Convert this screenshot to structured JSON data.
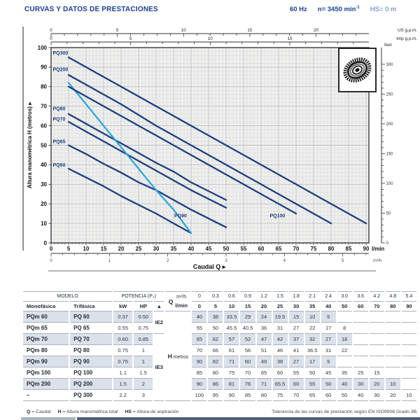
{
  "header": {
    "title": "CURVAS Y DATOS DE PRESTACIONES",
    "frequency": "60 Hz",
    "speed": "n= 3450 min",
    "speed_exp": "-1",
    "suction": "HS= 0 m"
  },
  "colors": {
    "accent_navy": "#1a3e94",
    "curve_dark": "#1e3f7e",
    "curve_light": "#2ea7dc",
    "row_shade": "#dbe1e9",
    "plot_bg": "#efefed"
  },
  "chart_data": {
    "type": "line",
    "xlabel": "Caudal Q",
    "ylabel": "Altura manométrica H (metros)",
    "x_units_primary": "l/min",
    "x_units_secondary": "m³/h",
    "right_axis_label": "feet",
    "top_axis_1_label": "US g.p.m.",
    "top_axis_2_label": "Imp g.p.m.",
    "xlim": [
      0,
      90
    ],
    "ylim": [
      0,
      100
    ],
    "x_tick_step": 5,
    "y_tick_step": 10,
    "grid": "fine graph paper, minor 1 l/min x 2 m",
    "us_gpm_labels": [
      0,
      5,
      10,
      15,
      20
    ],
    "imp_gpm_labels": [
      0,
      5,
      10,
      15
    ],
    "feet_labels": [
      0,
      50,
      100,
      150,
      200,
      250,
      300
    ],
    "m3h_labels": [
      0,
      1,
      2,
      3,
      4,
      5
    ],
    "x": [
      0,
      5,
      10,
      15,
      20,
      25,
      30,
      35,
      40,
      50,
      60,
      70,
      80,
      90
    ],
    "series": [
      {
        "name": "PQ60",
        "color": "#1e3f7e",
        "values": [
          40,
          38,
          33.5,
          29,
          24,
          19.5,
          15,
          10,
          5
        ]
      },
      {
        "name": "PQ65",
        "color": "#1e3f7e",
        "values": [
          55,
          50,
          45.5,
          40.5,
          36,
          31,
          27,
          22,
          17,
          8
        ]
      },
      {
        "name": "PQ70",
        "color": "#1e3f7e",
        "values": [
          65,
          62,
          57,
          52,
          47,
          42,
          37,
          32,
          27,
          18
        ]
      },
      {
        "name": "PQ80",
        "color": "#1e3f7e",
        "values": [
          70,
          66,
          61,
          56,
          51,
          46,
          41,
          36.5,
          31,
          22
        ]
      },
      {
        "name": "PQ90",
        "color": "#2ea7dc",
        "values": [
          90,
          82,
          71,
          60,
          49,
          38,
          27,
          17,
          5
        ]
      },
      {
        "name": "PQ100",
        "color": "#1e3f7e",
        "values": [
          85,
          80,
          75,
          70,
          65,
          60,
          55,
          50,
          45,
          35,
          25,
          15
        ]
      },
      {
        "name": "PQ200",
        "color": "#1e3f7e",
        "values": [
          90,
          86,
          81,
          76,
          71,
          65.5,
          60,
          55,
          50,
          40,
          30,
          20,
          10
        ]
      },
      {
        "name": "PQ300",
        "color": "#1e3f7e",
        "values": [
          100,
          95,
          90,
          85,
          80,
          75,
          70,
          65,
          60,
          50,
          40,
          30,
          20,
          10
        ]
      }
    ],
    "curve_labels": [
      {
        "text": "PQ300",
        "q": 0.5,
        "h": 96.5
      },
      {
        "text": "PQ200",
        "q": 0.5,
        "h": 88
      },
      {
        "text": "PQ80",
        "q": 0.5,
        "h": 68
      },
      {
        "text": "PQ70",
        "q": 0.5,
        "h": 62.5
      },
      {
        "text": "PQ65",
        "q": 0.5,
        "h": 51
      },
      {
        "text": "PQ60",
        "q": 0.5,
        "h": 39
      },
      {
        "text": "PQ90",
        "q": 35.2,
        "h": 13
      },
      {
        "text": "PQ100",
        "q": 62.5,
        "h": 13
      }
    ]
  },
  "table": {
    "header": {
      "modelo": "MODELO",
      "monofasica": "Monofásica",
      "trifasica": "Trifásica",
      "potencia": "POTENCIA (P₂)",
      "kw": "kW",
      "hp": "HP",
      "tri": "▲",
      "q": "Q",
      "m3h": "m³/h",
      "lmin": "l/min",
      "h": "H",
      "metros": "metros"
    },
    "m3h_values": [
      "0",
      "0.3",
      "0.6",
      "0.9",
      "1.2",
      "1.5",
      "1.8",
      "2.1",
      "2.4",
      "3.0",
      "3.6",
      "4.2",
      "4.8",
      "5.4"
    ],
    "lmin_values": [
      "0",
      "5",
      "10",
      "15",
      "20",
      "25",
      "30",
      "35",
      "40",
      "50",
      "60",
      "70",
      "80",
      "90"
    ],
    "efficiency_spans": [
      {
        "label": "IE2",
        "from_row": 0,
        "span": 2
      },
      {
        "label": "IE3",
        "from_row": 2,
        "span": 6
      }
    ],
    "rows": [
      {
        "mono": "PQm 60",
        "tri": "PQ 60",
        "kw": "0.37",
        "hp": "0.50",
        "h": [
          "40",
          "38",
          "33.5",
          "29",
          "24",
          "19.5",
          "15",
          "10",
          "5",
          "",
          "",
          "",
          "",
          ""
        ]
      },
      {
        "mono": "PQm 65",
        "tri": "PQ 65",
        "kw": "0.55",
        "hp": "0.75",
        "h": [
          "55",
          "50",
          "45.5",
          "40.5",
          "36",
          "31",
          "27",
          "22",
          "17",
          "8",
          "",
          "",
          "",
          ""
        ]
      },
      {
        "mono": "PQm 70",
        "tri": "PQ 70",
        "kw": "0.60",
        "hp": "0.85",
        "h": [
          "65",
          "62",
          "57",
          "52",
          "47",
          "42",
          "37",
          "32",
          "27",
          "18",
          "",
          "",
          "",
          ""
        ]
      },
      {
        "mono": "PQm 80",
        "tri": "PQ 80",
        "kw": "0.75",
        "hp": "1",
        "h": [
          "70",
          "66",
          "61",
          "56",
          "51",
          "46",
          "41",
          "36.5",
          "31",
          "22",
          "",
          "",
          "",
          ""
        ]
      },
      {
        "mono": "PQm 90",
        "tri": "PQ 90",
        "kw": "0.75",
        "hp": "1",
        "h": [
          "90",
          "82",
          "71",
          "60",
          "49",
          "38",
          "27",
          "17",
          "5",
          "",
          "",
          "",
          "",
          ""
        ]
      },
      {
        "mono": "PQm 100",
        "tri": "PQ 100",
        "kw": "1.1",
        "hp": "1.5",
        "h": [
          "85",
          "80",
          "75",
          "70",
          "65",
          "60",
          "55",
          "50",
          "45",
          "35",
          "25",
          "15",
          "",
          ""
        ]
      },
      {
        "mono": "PQm 200",
        "tri": "PQ 200",
        "kw": "1.5",
        "hp": "2",
        "h": [
          "90",
          "86",
          "81",
          "76",
          "71",
          "65.5",
          "60",
          "55",
          "50",
          "40",
          "30",
          "20",
          "10",
          ""
        ]
      },
      {
        "mono": "–",
        "tri": "PQ 300",
        "kw": "2.2",
        "hp": "3",
        "h": [
          "100",
          "95",
          "90",
          "85",
          "80",
          "75",
          "70",
          "65",
          "60",
          "50",
          "40",
          "30",
          "20",
          "10"
        ]
      }
    ]
  },
  "footer": {
    "legend": [
      {
        "key": "Q",
        "text": " = Caudal"
      },
      {
        "key": "H",
        "text": " = Altura manométrica total"
      },
      {
        "key": "HS",
        "text": " = Altura de aspiración"
      }
    ],
    "tolerance": "Tolerancia de las curvas de prestación según EN ISO9906 Grado 3B."
  }
}
